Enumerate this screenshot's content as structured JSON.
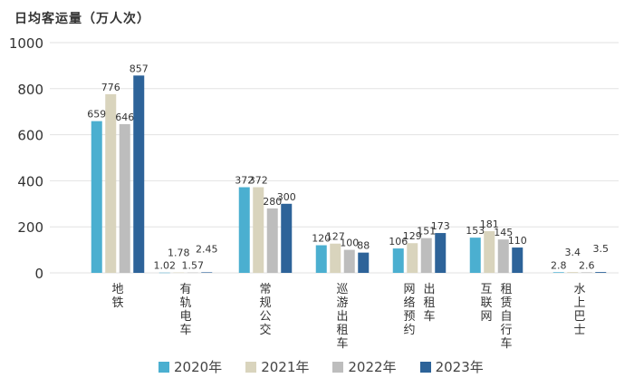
{
  "chart_data": {
    "type": "bar",
    "title": "日均客运量（万人次）",
    "ylim": [
      0,
      1000
    ],
    "yticks": [
      "0",
      "200",
      "400",
      "600",
      "800",
      "1000"
    ],
    "grid": true,
    "legend_position": "bottom",
    "categories": [
      "地铁",
      "有轨电车",
      "常规公交",
      "巡游出租车",
      "网络预约出租车",
      "互联网租赁自行车",
      "水上巴士"
    ],
    "category_label_columns": [
      [
        "地铁"
      ],
      [
        "有轨电车"
      ],
      [
        "常规公交"
      ],
      [
        "巡游出租车"
      ],
      [
        "网络预约",
        "出租车"
      ],
      [
        "互联网",
        "租赁自行车"
      ],
      [
        "水上巴士"
      ]
    ],
    "series": [
      {
        "name": "2020年",
        "color": "#4bafd0",
        "values": [
          659,
          1.02,
          372,
          120,
          106,
          153,
          2.8
        ],
        "labels": [
          "659",
          "1.02",
          "372",
          "120",
          "106",
          "153",
          "2.8"
        ]
      },
      {
        "name": "2021年",
        "color": "#d9d4bd",
        "values": [
          776,
          1.78,
          372,
          127,
          129,
          181,
          3.4
        ],
        "labels": [
          "776",
          "1.78",
          "372",
          "127",
          "129",
          "181",
          "3.4"
        ]
      },
      {
        "name": "2022年",
        "color": "#bdbdbd",
        "values": [
          646,
          1.57,
          280,
          100,
          151,
          145,
          2.6
        ],
        "labels": [
          "646",
          "1.57",
          "280",
          "100",
          "151",
          "145",
          "2.6"
        ]
      },
      {
        "name": "2023年",
        "color": "#2d6399",
        "values": [
          857,
          2.45,
          300,
          88,
          173,
          110,
          3.5
        ],
        "labels": [
          "857",
          "2.45",
          "300",
          "88",
          "173",
          "110",
          "3.5"
        ]
      }
    ]
  }
}
